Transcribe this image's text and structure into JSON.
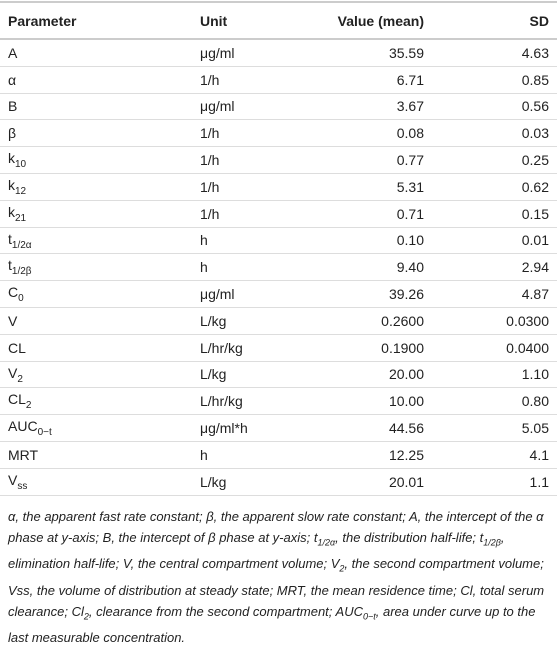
{
  "table": {
    "header": [
      "Parameter",
      "Unit",
      "Value (mean)",
      "SD"
    ],
    "rows": [
      [
        {
          "base": "A"
        },
        "μg/ml",
        "35.59",
        "4.63"
      ],
      [
        {
          "base": "α"
        },
        "1/h",
        "6.71",
        "0.85"
      ],
      [
        {
          "base": "B"
        },
        "μg/ml",
        "3.67",
        "0.56"
      ],
      [
        {
          "base": "β"
        },
        "1/h",
        "0.08",
        "0.03"
      ],
      [
        {
          "base": "k",
          "sub": "10"
        },
        "1/h",
        "0.77",
        "0.25"
      ],
      [
        {
          "base": "k",
          "sub": "12"
        },
        "1/h",
        "5.31",
        "0.62"
      ],
      [
        {
          "base": "k",
          "sub": "21"
        },
        "1/h",
        "0.71",
        "0.15"
      ],
      [
        {
          "base": "t",
          "sub": "1/2α"
        },
        "h",
        "0.10",
        "0.01"
      ],
      [
        {
          "base": "t",
          "sub": "1/2β"
        },
        "h",
        "9.40",
        "2.94"
      ],
      [
        {
          "base": "C",
          "sub": "0"
        },
        "μg/ml",
        "39.26",
        "4.87"
      ],
      [
        {
          "base": "V"
        },
        "L/kg",
        "0.2600",
        "0.0300"
      ],
      [
        {
          "base": "CL"
        },
        "L/hr/kg",
        "0.1900",
        "0.0400"
      ],
      [
        {
          "base": "V",
          "sub": "2"
        },
        "L/kg",
        "20.00",
        "1.10"
      ],
      [
        {
          "base": "CL",
          "sub": "2"
        },
        "L/hr/kg",
        "10.00",
        "0.80"
      ],
      [
        {
          "base": "AUC",
          "sub": "0−t"
        },
        "μg/ml*h",
        "44.56",
        "5.05"
      ],
      [
        {
          "base": "MRT"
        },
        "h",
        "12.25",
        "4.1"
      ],
      [
        {
          "base": "V",
          "sub": "ss"
        },
        "L/kg",
        "20.01",
        "1.1"
      ]
    ]
  },
  "footnote": [
    "α, the apparent fast rate constant; β, the apparent slow rate constant; A, the intercept of the α phase at y-axis; B, the intercept of β phase at y-axis; t",
    {
      "sub": "1/2α"
    },
    ", the distribution half-life; t",
    {
      "sub": "1/2β"
    },
    ", elimination half-life; V, the central compartment volume; V",
    {
      "sub": "2"
    },
    ", the second compartment volume; Vss, the volume of distribution at steady state; MRT, the mean residence time; Cl, total serum clearance; Cl",
    {
      "sub": "2"
    },
    ", clearance from the second compartment; AUC",
    {
      "sub": "0−t"
    },
    ", area under curve up to the last measurable concentration."
  ]
}
